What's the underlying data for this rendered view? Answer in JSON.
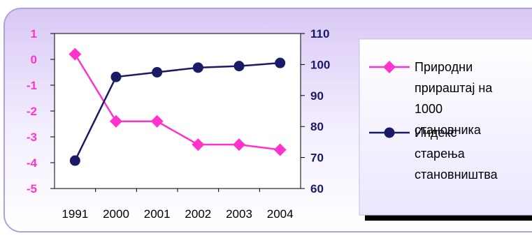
{
  "chart_data": {
    "type": "line",
    "categories": [
      "1991",
      "2000",
      "2001",
      "2002",
      "2003",
      "2004"
    ],
    "series": [
      {
        "name": "Природни прираштај на 1000 становника",
        "legend_lines": [
          "Природни",
          "прираштај на",
          "1000",
          "становника"
        ],
        "axis": "left",
        "color": "#ff33cc",
        "marker": "diamond",
        "values": [
          0.2,
          -2.4,
          -2.4,
          -3.3,
          -3.3,
          -3.5
        ]
      },
      {
        "name": "Индекс старења становништва",
        "legend_lines": [
          "Индекс",
          "старења",
          "становништва"
        ],
        "axis": "right",
        "color": "#1a1a66",
        "marker": "circle",
        "values": [
          69,
          96,
          97.5,
          99,
          99.5,
          100.5
        ]
      }
    ],
    "y_left": {
      "min": -5,
      "max": 1,
      "ticks": [
        "1",
        "0",
        "-1",
        "-2",
        "-3",
        "-4",
        "-5"
      ],
      "color": "#ff33cc"
    },
    "y_right": {
      "min": 60,
      "max": 110,
      "ticks": [
        "110",
        "100",
        "90",
        "80",
        "70",
        "60"
      ],
      "color": "#1a1a66"
    },
    "grid": false,
    "legend_position": "right",
    "frame_colors": {
      "border": "#b0a0e0",
      "gradient_top": "#d8c8f4",
      "gradient_bottom": "#ffffff"
    }
  }
}
